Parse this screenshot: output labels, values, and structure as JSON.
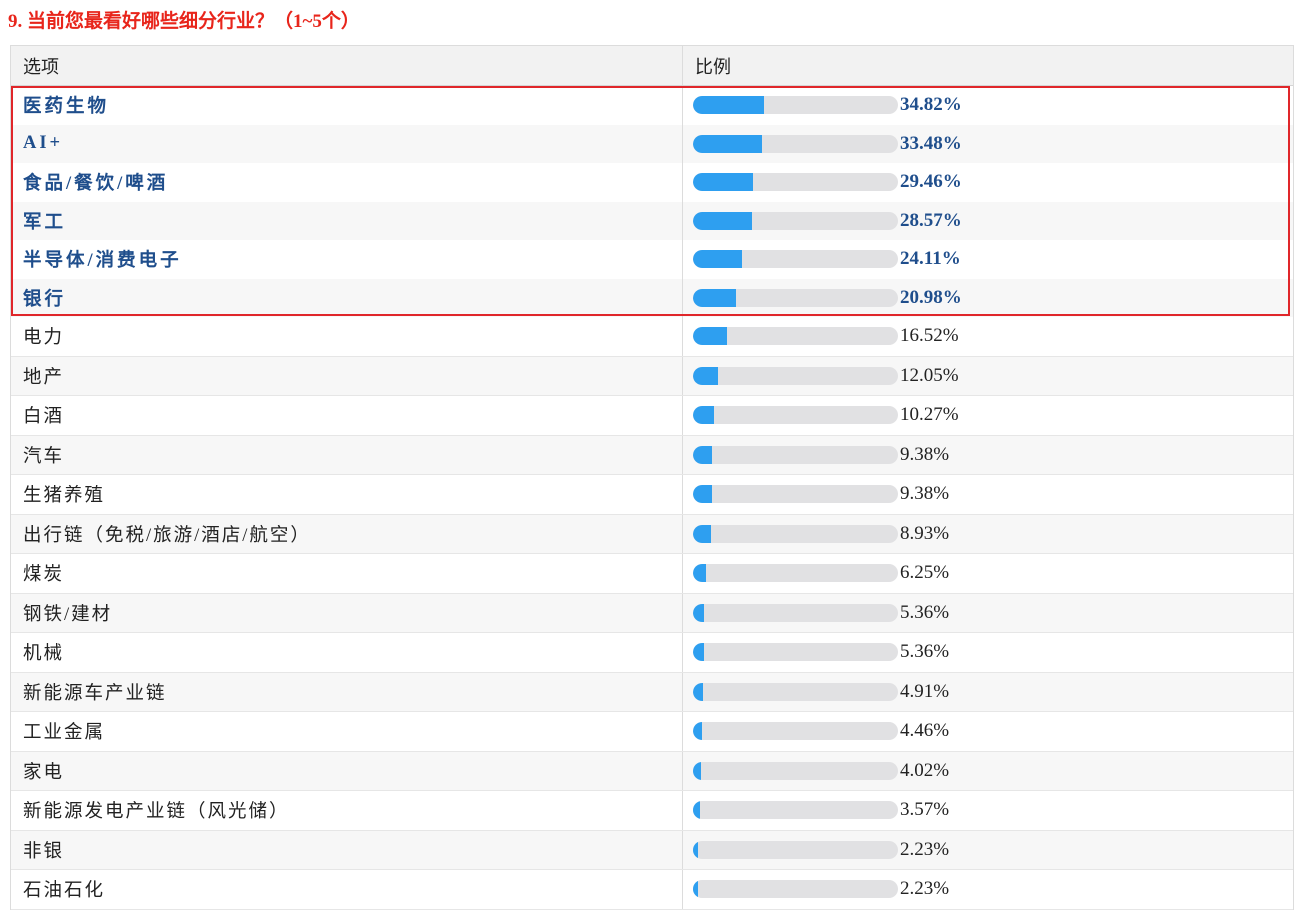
{
  "title": "9. 当前您最看好哪些细分行业？（1~5个）",
  "header": {
    "option": "选项",
    "ratio": "比例"
  },
  "colors": {
    "bar": "#2e9ff0",
    "track": "#e1e1e3",
    "highlight": "#1f4e8c",
    "title": "#e8251b",
    "box": "#e0262a"
  },
  "chart_data": {
    "type": "bar",
    "title": "9. 当前您最看好哪些细分行业？（1~5个）",
    "categories": [
      "医药生物",
      "AI+",
      "食品/餐饮/啤酒",
      "军工",
      "半导体/消费电子",
      "银行",
      "电力",
      "地产",
      "白酒",
      "汽车",
      "生猪养殖",
      "出行链（免税/旅游/酒店/航空）",
      "煤炭",
      "钢铁/建材",
      "机械",
      "新能源车产业链",
      "工业金属",
      "家电",
      "新能源发电产业链（风光储）",
      "非银",
      "石油石化"
    ],
    "values": [
      34.82,
      33.48,
      29.46,
      28.57,
      24.11,
      20.98,
      16.52,
      12.05,
      10.27,
      9.38,
      9.38,
      8.93,
      6.25,
      5.36,
      5.36,
      4.91,
      4.46,
      4.02,
      3.57,
      2.23,
      2.23
    ],
    "labels": [
      "34.82%",
      "33.48%",
      "29.46%",
      "28.57%",
      "24.11%",
      "20.98%",
      "16.52%",
      "12.05%",
      "10.27%",
      "9.38%",
      "9.38%",
      "8.93%",
      "6.25%",
      "5.36%",
      "5.36%",
      "4.91%",
      "4.46%",
      "4.02%",
      "3.57%",
      "2.23%",
      "2.23%"
    ],
    "highlighted_count": 6,
    "ylim": [
      0,
      100
    ]
  }
}
